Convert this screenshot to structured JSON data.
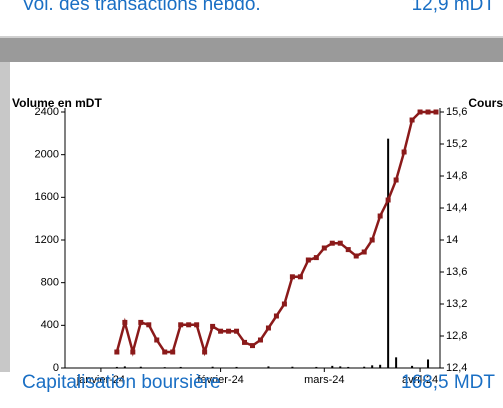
{
  "header": {
    "label": "Vol. des transactions hebdo.",
    "value": "12,9 mDT"
  },
  "footer": {
    "label": "Capitalisation boursière",
    "value": "168,5 MDT"
  },
  "chart_data": {
    "type": "bar-line",
    "y_label": "Volume en mDT",
    "y2_label": "Cours",
    "categories": [
      null,
      null,
      null,
      null,
      "janvier-24",
      null,
      null,
      null,
      null,
      null,
      null,
      null,
      null,
      null,
      null,
      null,
      null,
      null,
      null,
      "février-24",
      null,
      null,
      null,
      null,
      null,
      null,
      null,
      null,
      null,
      null,
      null,
      null,
      "mars-24",
      null,
      null,
      null,
      null,
      null,
      null,
      null,
      null,
      null,
      null,
      null,
      "avril-24",
      null,
      null
    ],
    "ylim": [
      0,
      2400
    ],
    "yticks": [
      0,
      400,
      800,
      1200,
      1600,
      2000,
      2400
    ],
    "y2lim": [
      12.4,
      15.6
    ],
    "y2ticks": [
      {
        "value": 12.4,
        "label": "12,4"
      },
      {
        "value": 12.8,
        "label": "12,8"
      },
      {
        "value": 13.2,
        "label": "13,2"
      },
      {
        "value": 13.6,
        "label": "13,6"
      },
      14,
      {
        "value": 14.4,
        "label": "14,4"
      },
      {
        "value": 14.8,
        "label": "14,8"
      },
      {
        "value": 15.2,
        "label": "15,2"
      },
      {
        "value": 15.6,
        "label": "15,6"
      }
    ],
    "series": [
      {
        "type": "bar",
        "color": "#000000",
        "values": [
          0,
          0,
          0,
          0,
          0,
          0,
          10,
          15,
          0,
          12,
          0,
          0,
          8,
          0,
          10,
          0,
          0,
          0,
          12,
          0,
          0,
          10,
          0,
          0,
          0,
          15,
          0,
          0,
          12,
          0,
          0,
          10,
          0,
          20,
          15,
          10,
          0,
          12,
          25,
          30,
          2150,
          100,
          0,
          20,
          0,
          80,
          0
        ]
      },
      {
        "type": "line",
        "axis": "y2",
        "color": "#8b1a1a",
        "values": [
          null,
          null,
          null,
          null,
          null,
          null,
          12.6,
          12.97,
          12.6,
          12.97,
          12.94,
          12.75,
          12.6,
          12.6,
          12.94,
          12.94,
          12.94,
          12.6,
          12.92,
          12.86,
          12.86,
          12.86,
          12.72,
          12.68,
          12.75,
          12.9,
          13.05,
          13.2,
          13.54,
          13.54,
          13.75,
          13.78,
          13.9,
          13.96,
          13.96,
          13.88,
          13.8,
          13.85,
          14.0,
          14.3,
          14.5,
          14.75,
          15.1,
          15.5,
          15.6,
          15.6,
          15.6
        ]
      }
    ]
  }
}
